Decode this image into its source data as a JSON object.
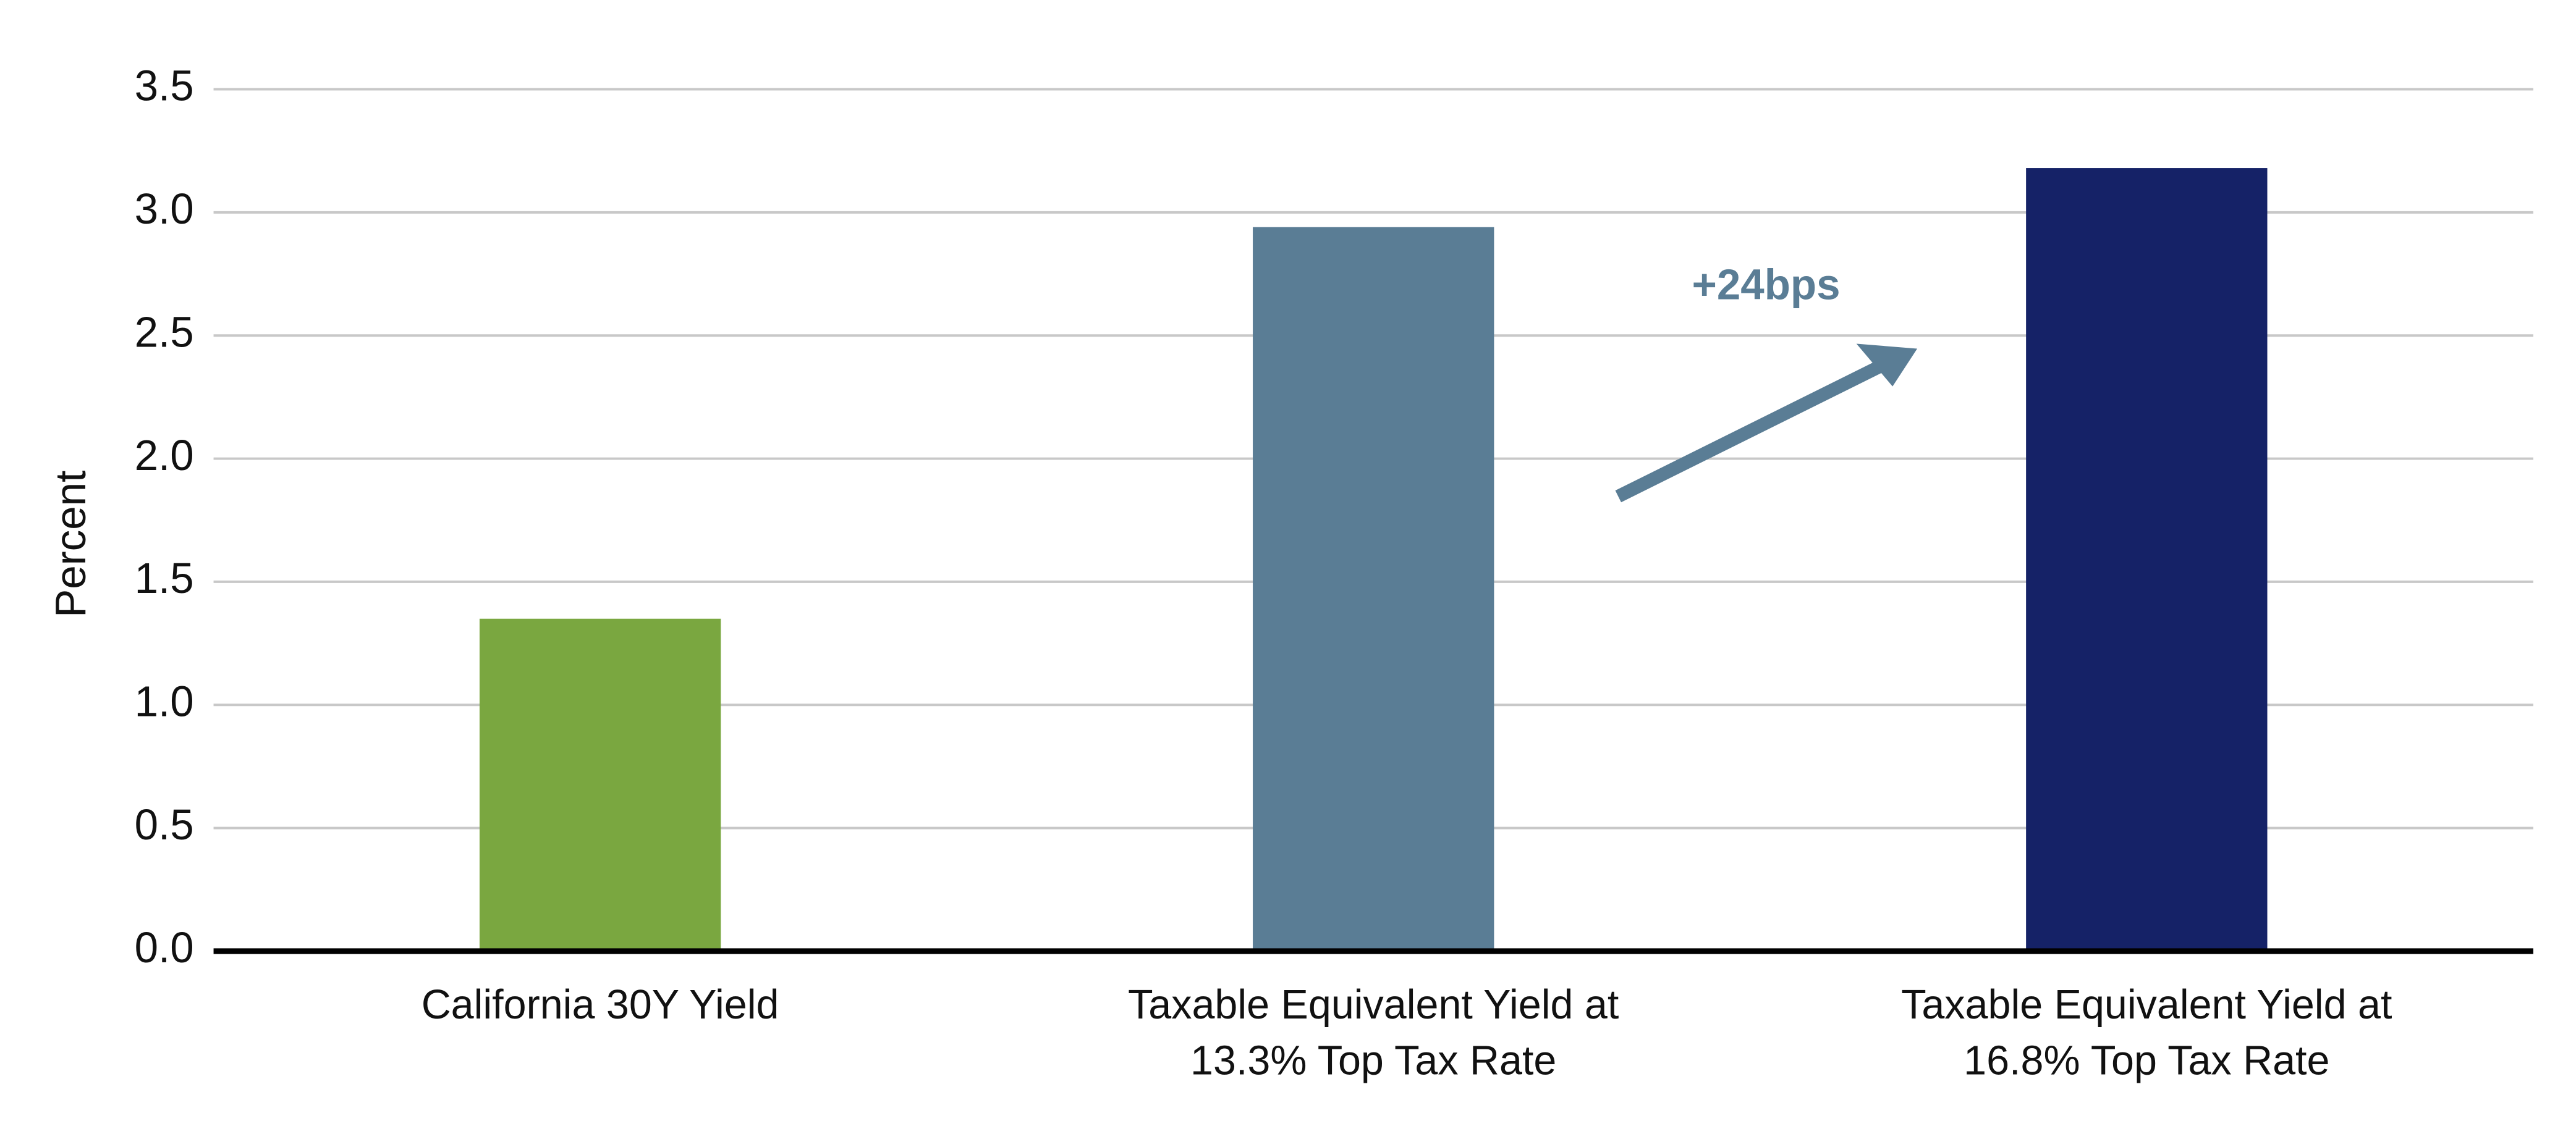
{
  "chart_data": {
    "type": "bar",
    "ylabel": "Percent",
    "categories": [
      "California 30Y Yield",
      "Taxable Equivalent Yield at 13.3% Top Tax Rate",
      "Taxable Equivalent Yield at 16.8% Top Tax Rate"
    ],
    "values": [
      1.35,
      2.94,
      3.18
    ],
    "colors": [
      "#7aa740",
      "#5a7d95",
      "#152267"
    ],
    "ylim": [
      0,
      3.5
    ],
    "yticks": [
      {
        "value": 0,
        "label": "0.0"
      },
      0.5,
      {
        "value": 1,
        "label": "1.0"
      },
      1.5,
      {
        "value": 2,
        "label": "2.0"
      },
      2.5,
      {
        "value": 3,
        "label": "3.0"
      },
      3.5
    ],
    "grid": true,
    "annotation": "+24bps"
  }
}
